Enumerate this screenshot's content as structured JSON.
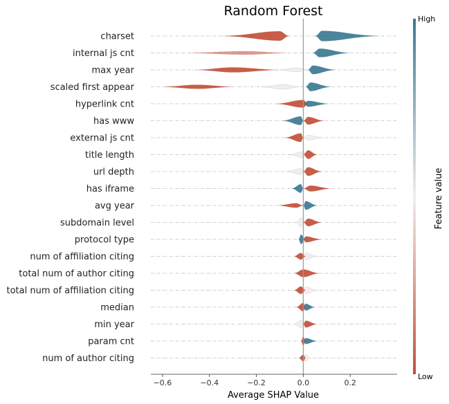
{
  "chart_data": {
    "type": "scatter",
    "subtype": "beeswarm",
    "title": "Random Forest",
    "xlabel": "Average SHAP Value",
    "xlim": [
      -0.65,
      0.4
    ],
    "xticks": [
      "−0.6",
      "−0.4",
      "−0.2",
      "0.0",
      "0.2"
    ],
    "xtick_values": [
      -0.6,
      -0.4,
      -0.2,
      0.0,
      0.2
    ],
    "colorbar": {
      "label": "Feature value",
      "high": "High",
      "low": "Low"
    },
    "colors": {
      "high": "#3c7a93",
      "mid": "#f2eded",
      "low": "#c1503a",
      "zero_line": "#999999"
    },
    "features": [
      {
        "name": "charset",
        "low": {
          "min": -0.35,
          "max": -0.06,
          "center": -0.1,
          "thick": 0.9
        },
        "mid": null,
        "high": {
          "min": 0.05,
          "max": 0.33,
          "center": 0.08,
          "thick": 1.0
        }
      },
      {
        "name": "internal js cnt",
        "low": {
          "min": -0.5,
          "max": -0.06,
          "center": -0.25,
          "thick": 0.25,
          "faded": true
        },
        "mid": null,
        "high": {
          "min": 0.04,
          "max": 0.2,
          "center": 0.07,
          "thick": 0.8
        }
      },
      {
        "name": "max year",
        "low": {
          "min": -0.46,
          "max": -0.1,
          "center": -0.3,
          "thick": 0.4
        },
        "mid": {
          "min": -0.1,
          "max": 0.02,
          "center": -0.03,
          "thick": 0.3
        },
        "high": {
          "min": 0.02,
          "max": 0.14,
          "center": 0.04,
          "thick": 0.8
        }
      },
      {
        "name": "scaled first appear",
        "low": {
          "min": -0.6,
          "max": -0.3,
          "center": -0.45,
          "thick": 0.3
        },
        "mid": {
          "min": -0.18,
          "max": -0.02,
          "center": -0.08,
          "thick": 0.35
        },
        "high": {
          "min": 0.01,
          "max": 0.12,
          "center": 0.03,
          "thick": 0.8
        }
      },
      {
        "name": "hyperlink cnt",
        "low": {
          "min": -0.12,
          "max": 0.02,
          "center": 0.0,
          "thick": 0.7
        },
        "mid": null,
        "high": {
          "min": 0.0,
          "max": 0.11,
          "center": 0.02,
          "thick": 0.5
        }
      },
      {
        "name": "has www",
        "low": {
          "min": 0.0,
          "max": 0.09,
          "center": 0.02,
          "thick": 0.7
        },
        "mid": null,
        "high": {
          "min": -0.09,
          "max": 0.0,
          "center": -0.01,
          "thick": 0.8
        }
      },
      {
        "name": "external js cnt",
        "low": {
          "min": -0.08,
          "max": 0.0,
          "center": -0.01,
          "thick": 0.8
        },
        "mid": {
          "min": 0.0,
          "max": 0.08,
          "center": 0.02,
          "thick": 0.4
        },
        "high": null
      },
      {
        "name": "title length",
        "low": {
          "min": 0.0,
          "max": 0.06,
          "center": 0.02,
          "thick": 0.8
        },
        "mid": {
          "min": -0.06,
          "max": 0.02,
          "center": 0.0,
          "thick": 0.5
        },
        "high": null
      },
      {
        "name": "url depth",
        "low": {
          "min": 0.0,
          "max": 0.08,
          "center": 0.02,
          "thick": 0.8
        },
        "mid": {
          "min": -0.07,
          "max": 0.0,
          "center": -0.01,
          "thick": 0.5
        },
        "high": null
      },
      {
        "name": "has iframe",
        "low": {
          "min": 0.0,
          "max": 0.12,
          "center": 0.03,
          "thick": 0.5
        },
        "mid": null,
        "high": {
          "min": -0.05,
          "max": 0.0,
          "center": -0.01,
          "thick": 0.8
        }
      },
      {
        "name": "avg year",
        "low": {
          "min": -0.11,
          "max": 0.0,
          "center": -0.03,
          "thick": 0.35
        },
        "mid": null,
        "high": {
          "min": 0.0,
          "max": 0.06,
          "center": 0.01,
          "thick": 0.8
        }
      },
      {
        "name": "subdomain level",
        "low": {
          "min": 0.0,
          "max": 0.08,
          "center": 0.02,
          "thick": 0.7
        },
        "mid": {
          "min": -0.03,
          "max": 0.01,
          "center": -0.01,
          "thick": 0.9
        },
        "high": null
      },
      {
        "name": "protocol type",
        "low": {
          "min": 0.0,
          "max": 0.08,
          "center": 0.01,
          "thick": 0.5
        },
        "mid": null,
        "high": {
          "min": -0.02,
          "max": 0.01,
          "center": -0.01,
          "thick": 0.9
        }
      },
      {
        "name": "num of affiliation citing",
        "low": {
          "min": -0.04,
          "max": 0.01,
          "center": -0.01,
          "thick": 0.6
        },
        "mid": {
          "min": 0.0,
          "max": 0.06,
          "center": 0.01,
          "thick": 0.6
        },
        "high": null
      },
      {
        "name": "total num of author citing",
        "low": {
          "min": -0.04,
          "max": 0.07,
          "center": 0.0,
          "thick": 0.7
        },
        "mid": null,
        "high": null
      },
      {
        "name": "total num of affiliation citing",
        "low": {
          "min": -0.04,
          "max": 0.01,
          "center": -0.01,
          "thick": 0.7
        },
        "mid": {
          "min": 0.0,
          "max": 0.06,
          "center": 0.01,
          "thick": 0.6
        },
        "high": null
      },
      {
        "name": "median",
        "low": {
          "min": -0.03,
          "max": 0.01,
          "center": 0.0,
          "thick": 0.8
        },
        "mid": null,
        "high": {
          "min": 0.0,
          "max": 0.05,
          "center": 0.01,
          "thick": 0.6
        }
      },
      {
        "name": "min year",
        "low": {
          "min": 0.0,
          "max": 0.06,
          "center": 0.01,
          "thick": 0.6
        },
        "mid": {
          "min": -0.04,
          "max": 0.01,
          "center": -0.01,
          "thick": 0.7
        },
        "high": null
      },
      {
        "name": "param cnt",
        "low": {
          "min": -0.01,
          "max": 0.01,
          "center": 0.0,
          "thick": 0.9
        },
        "mid": null,
        "high": {
          "min": 0.0,
          "max": 0.06,
          "center": 0.01,
          "thick": 0.5
        }
      },
      {
        "name": "num of author citing",
        "low": {
          "min": -0.02,
          "max": 0.01,
          "center": 0.0,
          "thick": 0.6
        },
        "mid": {
          "min": 0.0,
          "max": 0.03,
          "center": 0.01,
          "thick": 0.6
        },
        "high": null
      }
    ]
  }
}
